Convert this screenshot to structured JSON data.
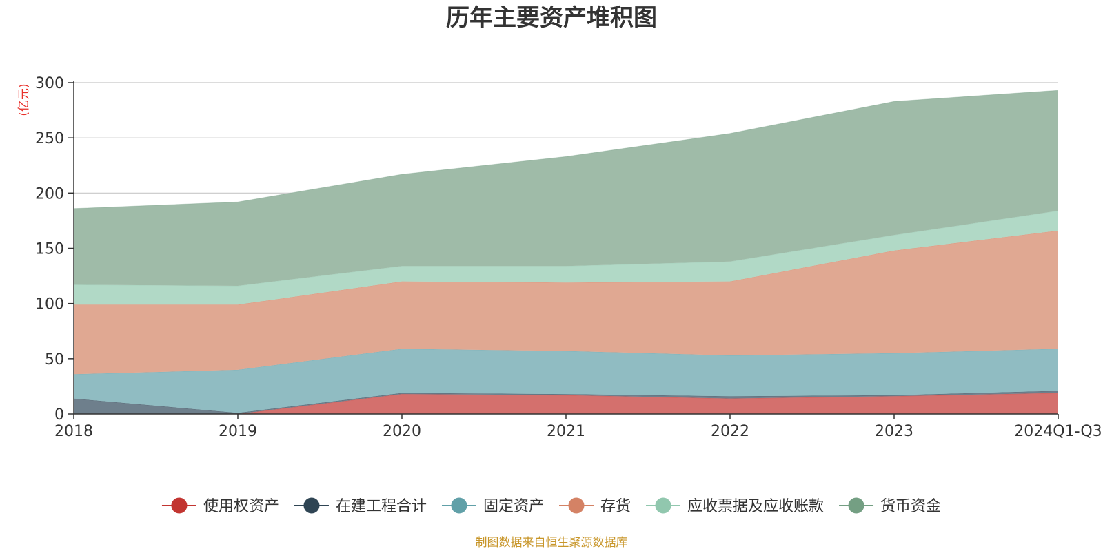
{
  "chart_data": {
    "type": "area",
    "stacked": true,
    "title": "历年主要资产堆积图",
    "unit_label": "(亿元)",
    "source": "制图数据来自恒生聚源数据库",
    "x": [
      "2018",
      "2019",
      "2020",
      "2021",
      "2022",
      "2023",
      "2024Q1-Q3"
    ],
    "ylim": [
      0,
      300
    ],
    "yticks": [
      0,
      50,
      100,
      150,
      200,
      250,
      300
    ],
    "grid": true,
    "legend_position": "bottom",
    "series": [
      {
        "name": "使用权资产",
        "color": "#c23531",
        "fill": "#d4706d",
        "values": [
          0,
          0,
          18,
          17,
          14,
          16,
          19
        ]
      },
      {
        "name": "在建工程合计",
        "color": "#2f4554",
        "fill": "#6e7f8c",
        "values": [
          14,
          1,
          1,
          1,
          2,
          1,
          2
        ]
      },
      {
        "name": "固定资产",
        "color": "#61a0a8",
        "fill": "#90bcc2",
        "values": [
          22,
          39,
          40,
          39,
          37,
          38,
          38
        ]
      },
      {
        "name": "存货",
        "color": "#d48265",
        "fill": "#e0a892",
        "values": [
          63,
          59,
          61,
          62,
          67,
          93,
          107
        ]
      },
      {
        "name": "应收票据及应收账款",
        "color": "#91c7ae",
        "fill": "#b1d9c6",
        "values": [
          18,
          17,
          14,
          15,
          18,
          14,
          18
        ]
      },
      {
        "name": "货币资金",
        "color": "#749f83",
        "fill": "#9fbba8",
        "values": [
          69,
          76,
          83,
          99,
          116,
          121,
          109
        ]
      }
    ]
  }
}
